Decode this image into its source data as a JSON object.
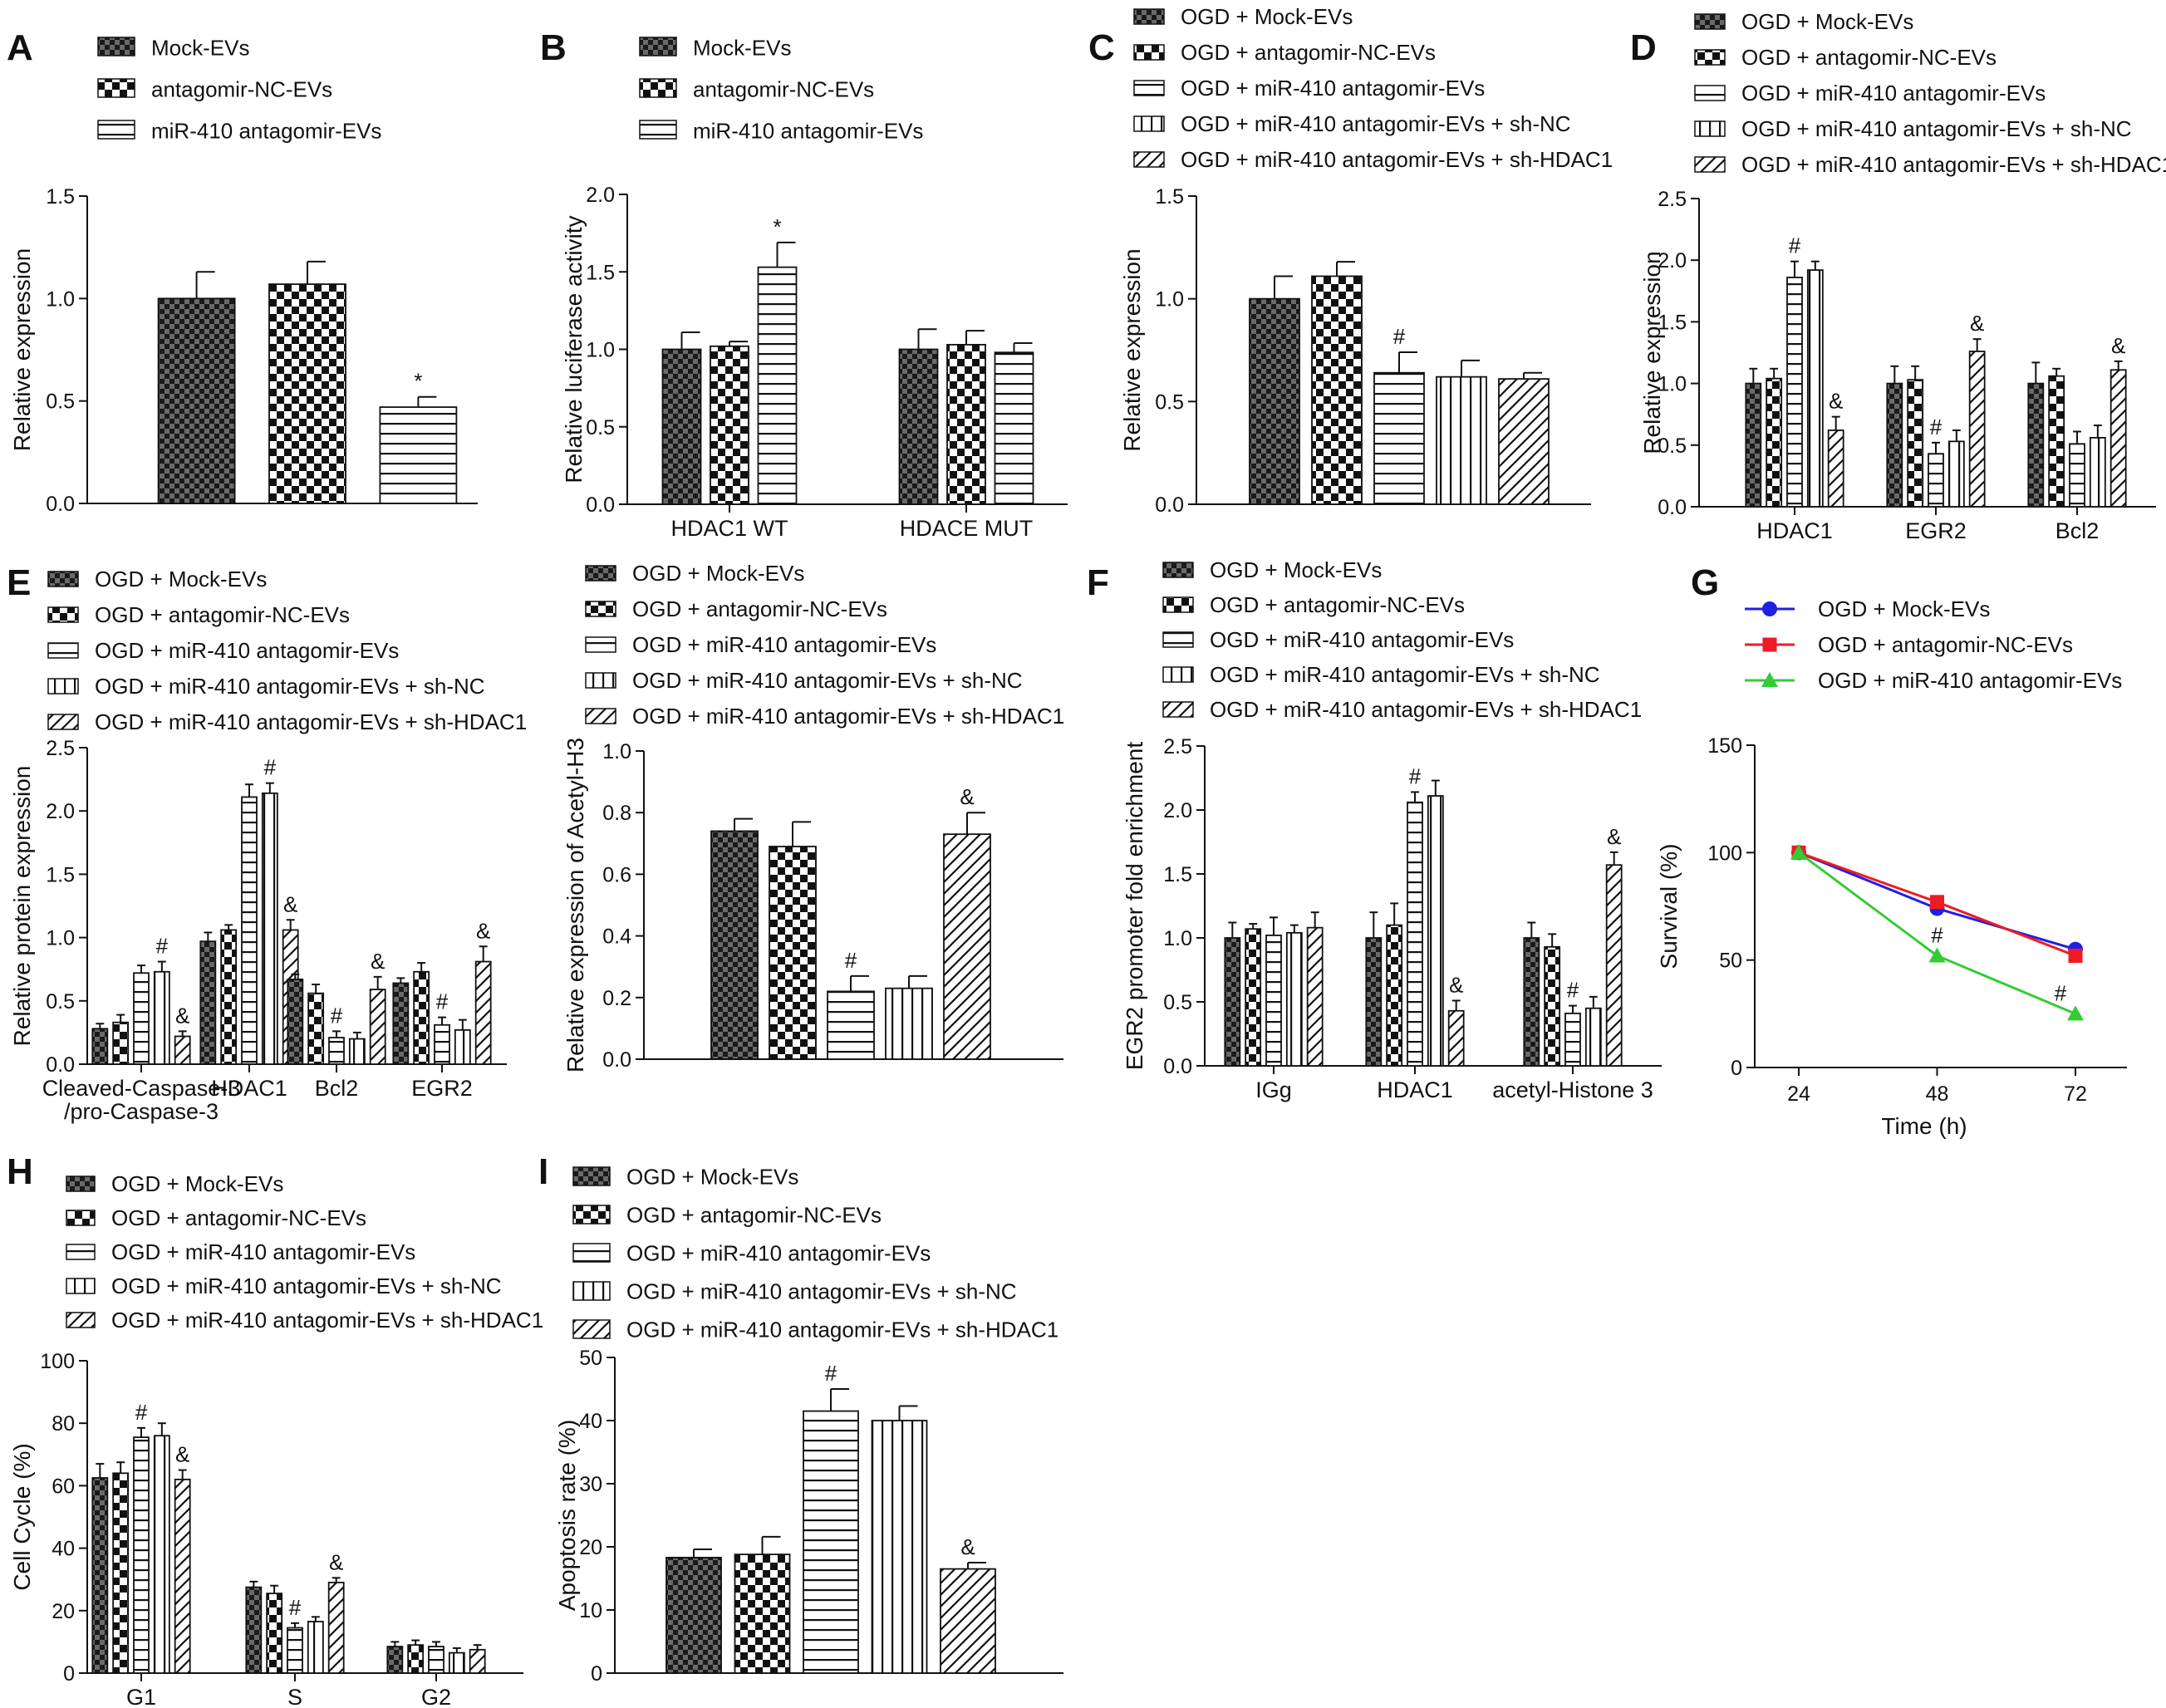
{
  "colors": {
    "ink": "#111111",
    "blue": "#1f1fe6",
    "red": "#ee1b24",
    "green": "#33cc33"
  },
  "chart_data": [
    {
      "id": "A",
      "type": "bar",
      "title": "",
      "ylabel": "Relative expression",
      "xlabel": "",
      "ylim": [
        0,
        1.5
      ],
      "yticks": [
        "0.0",
        "0.5",
        "1.0",
        "1.5"
      ],
      "legend": [
        "Mock-EVs",
        "antagomir-NC-EVs",
        "miR-410 antagomir-EVs"
      ],
      "categories": [
        ""
      ],
      "series": [
        {
          "name": "Mock-EVs",
          "values": [
            1.0
          ],
          "errors": [
            0.13
          ],
          "sig": [
            ""
          ]
        },
        {
          "name": "antagomir-NC-EVs",
          "values": [
            1.07
          ],
          "errors": [
            0.11
          ],
          "sig": [
            ""
          ]
        },
        {
          "name": "miR-410 antagomir-EVs",
          "values": [
            0.47
          ],
          "errors": [
            0.05
          ],
          "sig": [
            "*"
          ]
        }
      ]
    },
    {
      "id": "B",
      "type": "bar",
      "title": "",
      "ylabel": "Relative luciferase activity",
      "xlabel": "",
      "ylim": [
        0,
        2.0
      ],
      "yticks": [
        "0.0",
        "0.5",
        "1.0",
        "1.5",
        "2.0"
      ],
      "legend": [
        "Mock-EVs",
        "antagomir-NC-EVs",
        "miR-410 antagomir-EVs"
      ],
      "categories": [
        "HDAC1 WT",
        "HDACE MUT"
      ],
      "series": [
        {
          "name": "Mock-EVs",
          "values": [
            1.0,
            1.0
          ],
          "errors": [
            0.11,
            0.13
          ],
          "sig": [
            "",
            ""
          ]
        },
        {
          "name": "antagomir-NC-EVs",
          "values": [
            1.02,
            1.03
          ],
          "errors": [
            0.03,
            0.09
          ],
          "sig": [
            "",
            ""
          ]
        },
        {
          "name": "miR-410 antagomir-EVs",
          "values": [
            1.53,
            0.98
          ],
          "errors": [
            0.16,
            0.06
          ],
          "sig": [
            "*",
            ""
          ]
        }
      ]
    },
    {
      "id": "C",
      "type": "bar",
      "title": "",
      "ylabel": "Relative expression",
      "xlabel": "",
      "ylim": [
        0,
        1.5
      ],
      "yticks": [
        "0.0",
        "0.5",
        "1.0",
        "1.5"
      ],
      "legend": [
        "OGD + Mock-EVs",
        "OGD + antagomir-NC-EVs",
        "OGD + miR-410 antagomir-EVs",
        "OGD + miR-410 antagomir-EVs + sh-NC",
        "OGD + miR-410 antagomir-EVs + sh-HDAC1"
      ],
      "categories": [
        ""
      ],
      "series": [
        {
          "name": "OGD + Mock-EVs",
          "values": [
            1.0
          ],
          "errors": [
            0.11
          ],
          "sig": [
            ""
          ]
        },
        {
          "name": "OGD + antagomir-NC-EVs",
          "values": [
            1.11
          ],
          "errors": [
            0.07
          ],
          "sig": [
            ""
          ]
        },
        {
          "name": "OGD + miR-410 antagomir-EVs",
          "values": [
            0.64
          ],
          "errors": [
            0.1
          ],
          "sig": [
            "#"
          ]
        },
        {
          "name": "OGD + miR-410 antagomir-EVs + sh-NC",
          "values": [
            0.62
          ],
          "errors": [
            0.08
          ],
          "sig": [
            ""
          ]
        },
        {
          "name": "OGD + miR-410 antagomir-EVs + sh-HDAC1",
          "values": [
            0.61
          ],
          "errors": [
            0.03
          ],
          "sig": [
            ""
          ]
        }
      ]
    },
    {
      "id": "D",
      "type": "bar",
      "title": "",
      "ylabel": "Relative expression",
      "xlabel": "",
      "ylim": [
        0,
        2.5
      ],
      "yticks": [
        "0.0",
        "0.5",
        "1.0",
        "1.5",
        "2.0",
        "2.5"
      ],
      "legend": [
        "OGD + Mock-EVs",
        "OGD + antagomir-NC-EVs",
        "OGD + miR-410 antagomir-EVs",
        "OGD + miR-410 antagomir-EVs + sh-NC",
        "OGD + miR-410 antagomir-EVs + sh-HDAC1"
      ],
      "categories": [
        "HDAC1",
        "EGR2",
        "Bcl2"
      ],
      "series": [
        {
          "name": "OGD + Mock-EVs",
          "values": [
            1.0,
            1.0,
            1.0
          ],
          "errors": [
            0.12,
            0.14,
            0.17
          ],
          "sig": [
            "",
            "",
            ""
          ]
        },
        {
          "name": "OGD + antagomir-NC-EVs",
          "values": [
            1.04,
            1.03,
            1.06
          ],
          "errors": [
            0.08,
            0.11,
            0.06
          ],
          "sig": [
            "",
            "",
            ""
          ]
        },
        {
          "name": "OGD + miR-410 antagomir-EVs",
          "values": [
            1.86,
            0.43,
            0.51
          ],
          "errors": [
            0.13,
            0.09,
            0.1
          ],
          "sig": [
            "#",
            "#",
            ""
          ]
        },
        {
          "name": "OGD + miR-410 antagomir-EVs + sh-NC",
          "values": [
            1.92,
            0.53,
            0.56
          ],
          "errors": [
            0.07,
            0.09,
            0.1
          ],
          "sig": [
            "",
            "",
            ""
          ]
        },
        {
          "name": "OGD + miR-410 antagomir-EVs + sh-HDAC1",
          "values": [
            0.62,
            1.26,
            1.11
          ],
          "errors": [
            0.11,
            0.1,
            0.07
          ],
          "sig": [
            "&",
            "&",
            "&"
          ]
        }
      ]
    },
    {
      "id": "E",
      "type": "bar",
      "title": "",
      "ylabel": "Relative protein expression",
      "xlabel": "",
      "ylim": [
        0,
        2.5
      ],
      "yticks": [
        "0.0",
        "0.5",
        "1.0",
        "1.5",
        "2.0",
        "2.5"
      ],
      "legend": [
        "OGD + Mock-EVs",
        "OGD + antagomir-NC-EVs",
        "OGD + miR-410 antagomir-EVs",
        "OGD + miR-410 antagomir-EVs + sh-NC",
        "OGD + miR-410 antagomir-EVs + sh-HDAC1"
      ],
      "categories": [
        "Cleaved-Caspase-3|/pro-Caspase-3",
        "HDAC1",
        "Bcl2",
        "EGR2"
      ],
      "series": [
        {
          "name": "OGD + Mock-EVs",
          "values": [
            0.28,
            0.97,
            0.67,
            0.64
          ],
          "errors": [
            0.04,
            0.07,
            0.04,
            0.04
          ],
          "sig": [
            "",
            "",
            "",
            ""
          ]
        },
        {
          "name": "OGD + antagomir-NC-EVs",
          "values": [
            0.33,
            1.06,
            0.56,
            0.73
          ],
          "errors": [
            0.06,
            0.04,
            0.07,
            0.07
          ],
          "sig": [
            "",
            "",
            "",
            ""
          ]
        },
        {
          "name": "OGD + miR-410 antagomir-EVs",
          "values": [
            0.72,
            2.11,
            0.21,
            0.31
          ],
          "errors": [
            0.06,
            0.1,
            0.05,
            0.06
          ],
          "sig": [
            "",
            "",
            "#",
            "#"
          ]
        },
        {
          "name": "OGD + miR-410 antagomir-EVs + sh-NC",
          "values": [
            0.73,
            2.14,
            0.2,
            0.27
          ],
          "errors": [
            0.08,
            0.08,
            0.05,
            0.08
          ],
          "sig": [
            "#",
            "#",
            "",
            ""
          ]
        },
        {
          "name": "OGD + miR-410 antagomir-EVs + sh-HDAC1",
          "values": [
            0.22,
            1.06,
            0.59,
            0.81
          ],
          "errors": [
            0.04,
            0.08,
            0.1,
            0.12
          ],
          "sig": [
            "&",
            "&",
            "&",
            "&"
          ]
        }
      ]
    },
    {
      "id": "E2",
      "type": "bar",
      "title": "",
      "ylabel": "Relative expression of Acetyl-H3",
      "xlabel": "",
      "ylim": [
        0,
        1.0
      ],
      "yticks": [
        "0.0",
        "0.2",
        "0.4",
        "0.6",
        "0.8",
        "1.0"
      ],
      "legend": [
        "OGD + Mock-EVs",
        "OGD + antagomir-NC-EVs",
        "OGD + miR-410 antagomir-EVs",
        "OGD + miR-410 antagomir-EVs + sh-NC",
        "OGD + miR-410 antagomir-EVs + sh-HDAC1"
      ],
      "categories": [
        ""
      ],
      "series": [
        {
          "name": "OGD + Mock-EVs",
          "values": [
            0.74
          ],
          "errors": [
            0.04
          ],
          "sig": [
            ""
          ]
        },
        {
          "name": "OGD + antagomir-NC-EVs",
          "values": [
            0.69
          ],
          "errors": [
            0.08
          ],
          "sig": [
            ""
          ]
        },
        {
          "name": "OGD + miR-410 antagomir-EVs",
          "values": [
            0.22
          ],
          "errors": [
            0.05
          ],
          "sig": [
            "#"
          ]
        },
        {
          "name": "OGD + miR-410 antagomir-EVs + sh-NC",
          "values": [
            0.23
          ],
          "errors": [
            0.04
          ],
          "sig": [
            ""
          ]
        },
        {
          "name": "OGD + miR-410 antagomir-EVs + sh-HDAC1",
          "values": [
            0.73
          ],
          "errors": [
            0.07
          ],
          "sig": [
            "&"
          ]
        }
      ]
    },
    {
      "id": "F",
      "type": "bar",
      "title": "",
      "ylabel": "EGR2 promoter fold enrichment",
      "xlabel": "",
      "ylim": [
        0,
        2.5
      ],
      "yticks": [
        "0.0",
        "0.5",
        "1.0",
        "1.5",
        "2.0",
        "2.5"
      ],
      "legend": [
        "OGD + Mock-EVs",
        "OGD + antagomir-NC-EVs",
        "OGD + miR-410 antagomir-EVs",
        "OGD + miR-410 antagomir-EVs + sh-NC",
        "OGD + miR-410 antagomir-EVs + sh-HDAC1"
      ],
      "categories": [
        "IGg",
        "HDAC1",
        "acetyl-Histone 3"
      ],
      "series": [
        {
          "name": "OGD + Mock-EVs",
          "values": [
            1.0,
            1.0,
            1.0
          ],
          "errors": [
            0.12,
            0.2,
            0.12
          ],
          "sig": [
            "",
            "",
            ""
          ]
        },
        {
          "name": "OGD + antagomir-NC-EVs",
          "values": [
            1.07,
            1.1,
            0.93
          ],
          "errors": [
            0.04,
            0.17,
            0.1
          ],
          "sig": [
            "",
            "",
            ""
          ]
        },
        {
          "name": "OGD + miR-410 antagomir-EVs",
          "values": [
            1.02,
            2.06,
            0.41
          ],
          "errors": [
            0.14,
            0.08,
            0.06
          ],
          "sig": [
            "",
            "#",
            "#"
          ]
        },
        {
          "name": "OGD + miR-410 antagomir-EVs + sh-NC",
          "values": [
            1.04,
            2.11,
            0.45
          ],
          "errors": [
            0.06,
            0.12,
            0.09
          ],
          "sig": [
            "",
            "",
            ""
          ]
        },
        {
          "name": "OGD + miR-410 antagomir-EVs + sh-HDAC1",
          "values": [
            1.08,
            0.43,
            1.57
          ],
          "errors": [
            0.12,
            0.08,
            0.1
          ],
          "sig": [
            "",
            "&",
            "&"
          ]
        }
      ]
    },
    {
      "id": "G",
      "type": "line",
      "title": "",
      "ylabel": "Survival (%)",
      "xlabel": "Time (h)",
      "ylim": [
        0,
        150
      ],
      "yticks": [
        "0",
        "50",
        "100",
        "150"
      ],
      "x": [
        24,
        48,
        72
      ],
      "xticks": [
        "24",
        "48",
        "72"
      ],
      "series": [
        {
          "name": "OGD + Mock-EVs",
          "color": "#1f1fe6",
          "marker": "circle",
          "values": [
            100,
            74,
            55
          ],
          "sig": [
            "",
            "",
            ""
          ]
        },
        {
          "name": "OGD + antagomir-NC-EVs",
          "color": "#ee1b24",
          "marker": "square",
          "values": [
            100,
            77,
            52
          ],
          "sig": [
            "",
            "",
            ""
          ]
        },
        {
          "name": "OGD + miR-410 antagomir-EVs",
          "color": "#33cc33",
          "marker": "triangle",
          "values": [
            100,
            52,
            25
          ],
          "sig": [
            "",
            "#",
            "#"
          ]
        }
      ]
    },
    {
      "id": "H",
      "type": "bar",
      "title": "",
      "ylabel": "Cell Cycle (%)",
      "xlabel": "",
      "ylim": [
        0,
        100
      ],
      "yticks": [
        "0",
        "20",
        "40",
        "60",
        "80",
        "100"
      ],
      "legend": [
        "OGD + Mock-EVs",
        "OGD + antagomir-NC-EVs",
        "OGD + miR-410 antagomir-EVs",
        "OGD + miR-410 antagomir-EVs + sh-NC",
        "OGD + miR-410 antagomir-EVs + sh-HDAC1"
      ],
      "categories": [
        "G1",
        "S",
        "G2"
      ],
      "series": [
        {
          "name": "OGD + Mock-EVs",
          "values": [
            62.5,
            27.5,
            8.5
          ],
          "errors": [
            4.5,
            1.8,
            1.5
          ],
          "sig": [
            "",
            "",
            ""
          ]
        },
        {
          "name": "OGD + antagomir-NC-EVs",
          "values": [
            64,
            25.5,
            9
          ],
          "errors": [
            3.5,
            2.5,
            1.5
          ],
          "sig": [
            "",
            "",
            ""
          ]
        },
        {
          "name": "OGD + miR-410 antagomir-EVs",
          "values": [
            75.5,
            14.5,
            8.5
          ],
          "errors": [
            3,
            1.5,
            1.5
          ],
          "sig": [
            "#",
            "#",
            ""
          ]
        },
        {
          "name": "OGD + miR-410 antagomir-EVs + sh-NC",
          "values": [
            76,
            16.5,
            6.5
          ],
          "errors": [
            4,
            1.5,
            1.5
          ],
          "sig": [
            "",
            "",
            ""
          ]
        },
        {
          "name": "OGD + miR-410 antagomir-EVs + sh-HDAC1",
          "values": [
            62,
            29,
            7.5
          ],
          "errors": [
            3,
            1.5,
            1.5
          ],
          "sig": [
            "&",
            "&",
            ""
          ]
        }
      ]
    },
    {
      "id": "I",
      "type": "bar",
      "title": "",
      "ylabel": "Apoptosis rate (%)",
      "xlabel": "",
      "ylim": [
        0,
        50
      ],
      "yticks": [
        "0",
        "10",
        "20",
        "30",
        "40",
        "50"
      ],
      "legend": [
        "OGD + Mock-EVs",
        "OGD + antagomir-NC-EVs",
        "OGD + miR-410 antagomir-EVs",
        "OGD + miR-410 antagomir-EVs + sh-NC",
        "OGD + miR-410 antagomir-EVs + sh-HDAC1"
      ],
      "categories": [
        ""
      ],
      "series": [
        {
          "name": "OGD + Mock-EVs",
          "values": [
            18.3
          ],
          "errors": [
            1.3
          ],
          "sig": [
            ""
          ]
        },
        {
          "name": "OGD + antagomir-NC-EVs",
          "values": [
            18.8
          ],
          "errors": [
            2.8
          ],
          "sig": [
            ""
          ]
        },
        {
          "name": "OGD + miR-410 antagomir-EVs",
          "values": [
            41.5
          ],
          "errors": [
            3.5
          ],
          "sig": [
            "#"
          ]
        },
        {
          "name": "OGD + miR-410 antagomir-EVs + sh-NC",
          "values": [
            40
          ],
          "errors": [
            2.3
          ],
          "sig": [
            ""
          ]
        },
        {
          "name": "OGD + miR-410 antagomir-EVs + sh-HDAC1",
          "values": [
            16.5
          ],
          "errors": [
            1
          ],
          "sig": [
            "&"
          ]
        }
      ]
    }
  ]
}
